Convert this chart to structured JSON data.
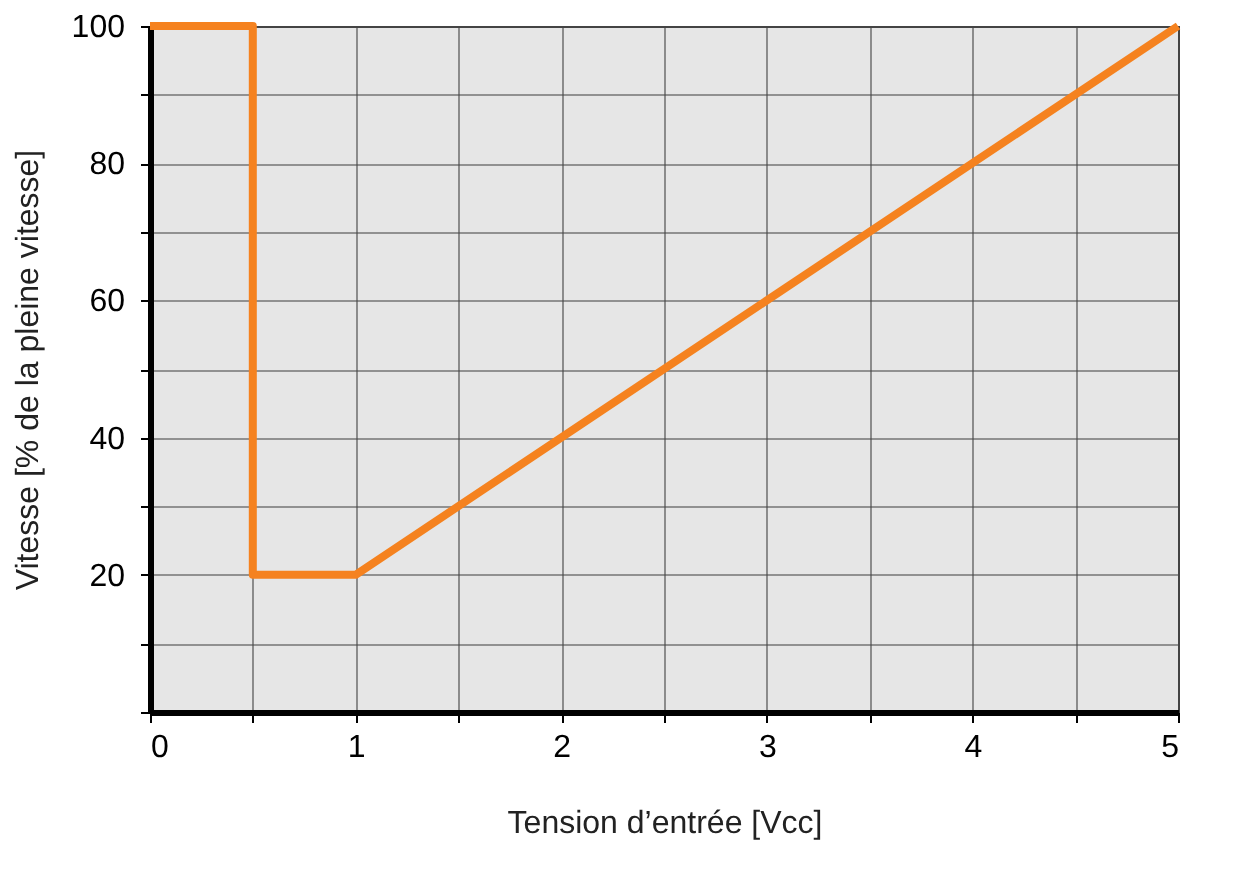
{
  "chart_data": {
    "type": "line",
    "xlabel": "Tension d’entrée [Vcc]",
    "ylabel": "Vitesse [% de la pleine vitesse]",
    "series": [
      {
        "color": "#f5821f",
        "x": [
          0,
          0.5,
          0.5,
          1,
          5
        ],
        "values": [
          100,
          100,
          20,
          20,
          100
        ]
      }
    ],
    "xlim": [
      0,
      5
    ],
    "xticks": [
      0,
      {
        "value": 0.5,
        "label": null
      },
      1,
      {
        "value": 1.5,
        "label": null
      },
      2,
      {
        "value": 2.5,
        "label": null
      },
      3,
      {
        "value": 3.5,
        "label": null
      },
      4,
      {
        "value": 4.5,
        "label": null
      },
      5
    ],
    "ylim": [
      0,
      100
    ],
    "yticks": [
      {
        "value": 0,
        "label": null
      },
      {
        "value": 10,
        "label": null
      },
      20,
      {
        "value": 30,
        "label": null
      },
      40,
      {
        "value": 50,
        "label": null
      },
      60,
      {
        "value": 70,
        "label": null
      },
      80,
      {
        "value": 90,
        "label": null
      },
      100
    ],
    "grid": true,
    "legend": false,
    "marker": "none",
    "line_style": "solid"
  }
}
